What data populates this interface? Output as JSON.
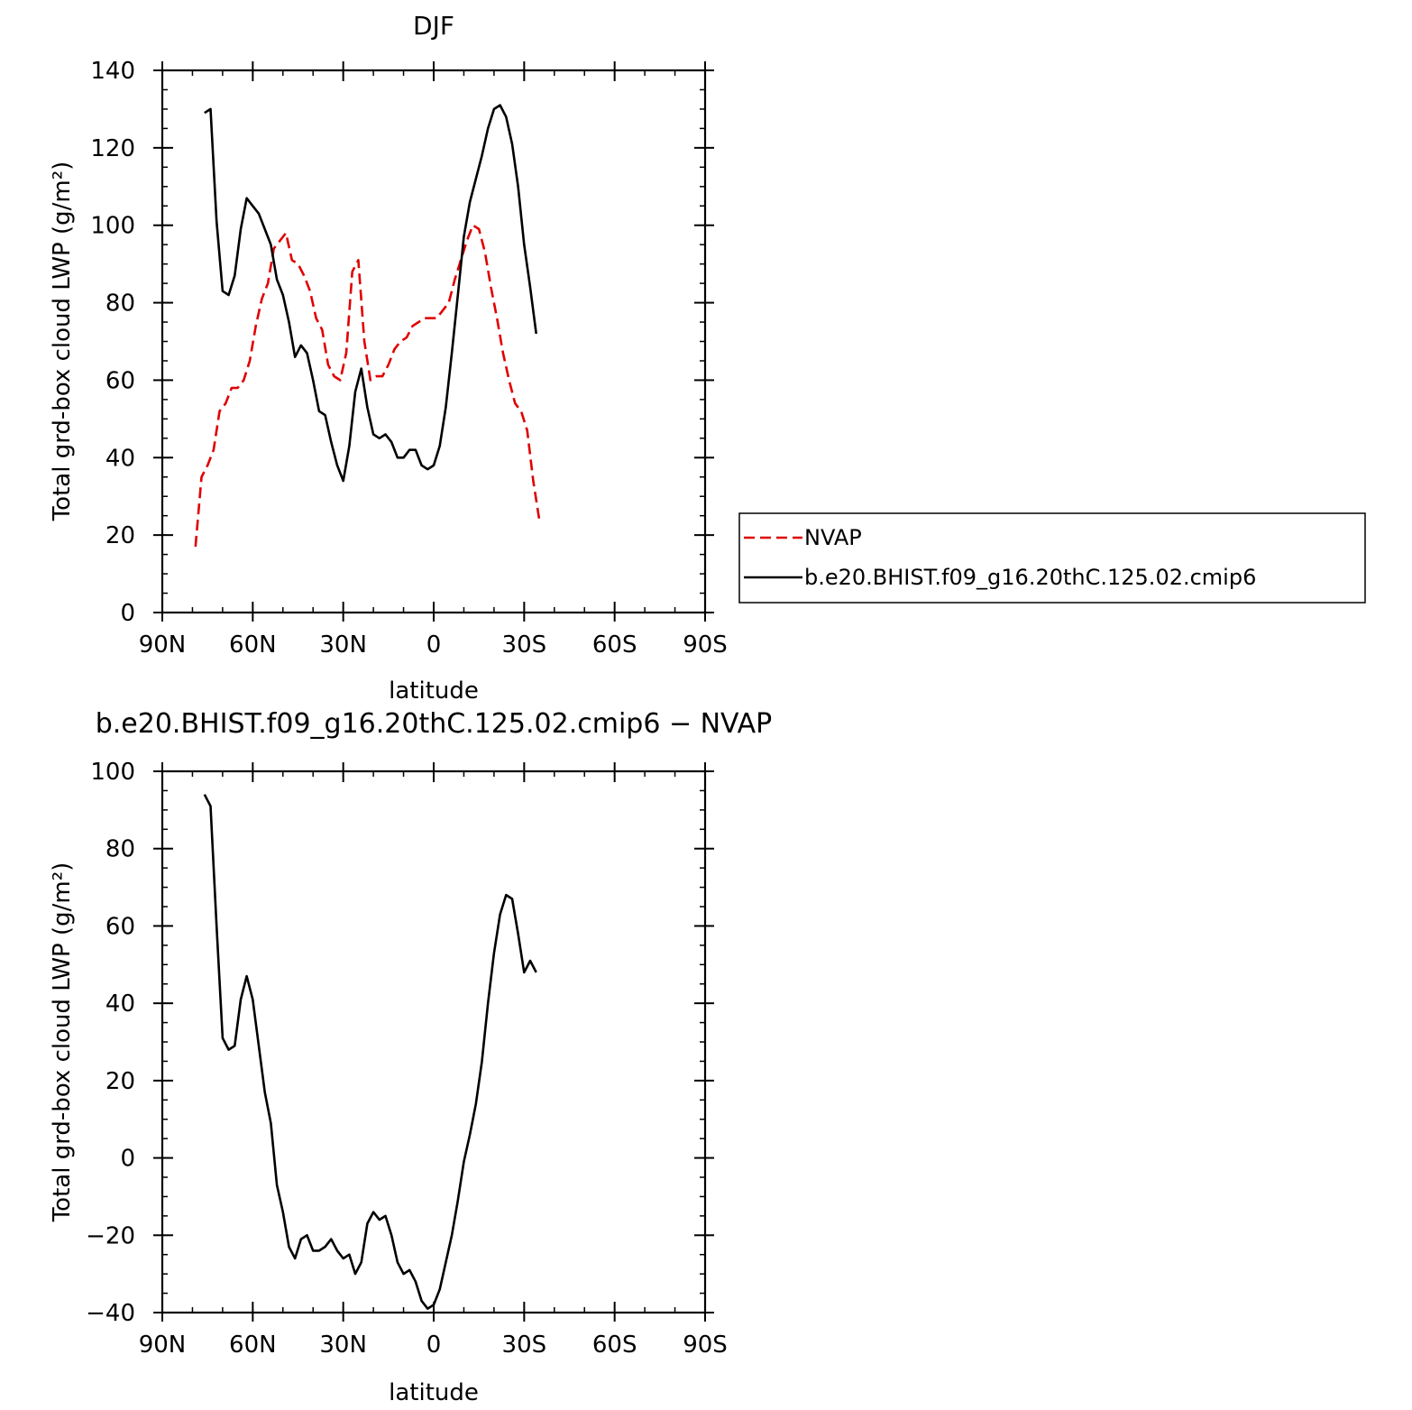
{
  "chart_data": [
    {
      "type": "line",
      "title": "DJF",
      "xlabel": "latitude",
      "ylabel": "Total grd-box cloud LWP (g/m²)",
      "xlim": [
        90,
        -90
      ],
      "ylim": [
        0,
        140
      ],
      "xticks": [
        {
          "value": 90,
          "label": "90N"
        },
        {
          "value": 60,
          "label": "60N"
        },
        {
          "value": 30,
          "label": "30N"
        },
        {
          "value": 0,
          "label": "0"
        },
        {
          "value": -30,
          "label": "30S"
        },
        {
          "value": -60,
          "label": "60S"
        },
        {
          "value": -90,
          "label": "90S"
        }
      ],
      "yticks": [
        {
          "value": 0,
          "label": "0"
        },
        {
          "value": 20,
          "label": "20"
        },
        {
          "value": 40,
          "label": "40"
        },
        {
          "value": 60,
          "label": "60"
        },
        {
          "value": 80,
          "label": "80"
        },
        {
          "value": 100,
          "label": "100"
        },
        {
          "value": 120,
          "label": "120"
        },
        {
          "value": 140,
          "label": "140"
        }
      ],
      "legend": {
        "position": "right"
      },
      "series": [
        {
          "name": "NVAP",
          "color": "#e00000",
          "dash": "dashed",
          "points": [
            [
              79,
              17
            ],
            [
              77,
              35
            ],
            [
              75,
              38
            ],
            [
              73,
              42
            ],
            [
              71,
              52
            ],
            [
              69,
              54
            ],
            [
              67,
              58
            ],
            [
              65,
              58
            ],
            [
              63,
              60
            ],
            [
              61,
              65
            ],
            [
              59,
              74
            ],
            [
              57,
              81
            ],
            [
              55,
              85
            ],
            [
              53,
              94
            ],
            [
              51,
              96
            ],
            [
              49,
              98
            ],
            [
              47,
              91
            ],
            [
              45,
              90
            ],
            [
              43,
              87
            ],
            [
              41,
              83
            ],
            [
              39,
              76
            ],
            [
              37,
              73
            ],
            [
              35,
              64
            ],
            [
              33,
              61
            ],
            [
              31,
              60
            ],
            [
              29,
              67
            ],
            [
              27,
              88
            ],
            [
              25,
              91
            ],
            [
              23,
              70
            ],
            [
              21,
              60
            ],
            [
              19,
              61
            ],
            [
              17,
              61
            ],
            [
              15,
              64
            ],
            [
              13,
              68
            ],
            [
              11,
              70
            ],
            [
              9,
              71
            ],
            [
              7,
              74
            ],
            [
              5,
              75
            ],
            [
              3,
              76
            ],
            [
              1,
              76
            ],
            [
              -1,
              76
            ],
            [
              -3,
              78
            ],
            [
              -5,
              80
            ],
            [
              -7,
              86
            ],
            [
              -9,
              91
            ],
            [
              -11,
              96
            ],
            [
              -13,
              100
            ],
            [
              -15,
              99
            ],
            [
              -17,
              93
            ],
            [
              -19,
              84
            ],
            [
              -21,
              76
            ],
            [
              -23,
              67
            ],
            [
              -25,
              60
            ],
            [
              -27,
              54
            ],
            [
              -29,
              52
            ],
            [
              -31,
              47
            ],
            [
              -33,
              34
            ],
            [
              -35,
              24
            ]
          ]
        },
        {
          "name": "b.e20.BHIST.f09_g16.20thC.125.02.cmip6",
          "color": "#000000",
          "dash": "solid",
          "points": [
            [
              76,
              129
            ],
            [
              74,
              130
            ],
            [
              72,
              101
            ],
            [
              70,
              83
            ],
            [
              68,
              82
            ],
            [
              66,
              87
            ],
            [
              64,
              99
            ],
            [
              62,
              107
            ],
            [
              60,
              105
            ],
            [
              58,
              103
            ],
            [
              56,
              99
            ],
            [
              54,
              95
            ],
            [
              52,
              86
            ],
            [
              50,
              82
            ],
            [
              48,
              75
            ],
            [
              46,
              66
            ],
            [
              44,
              69
            ],
            [
              42,
              67
            ],
            [
              40,
              60
            ],
            [
              38,
              52
            ],
            [
              36,
              51
            ],
            [
              34,
              44
            ],
            [
              32,
              38
            ],
            [
              30,
              34
            ],
            [
              28,
              43
            ],
            [
              26,
              57
            ],
            [
              24,
              63
            ],
            [
              22,
              53
            ],
            [
              20,
              46
            ],
            [
              18,
              45
            ],
            [
              16,
              46
            ],
            [
              14,
              44
            ],
            [
              12,
              40
            ],
            [
              10,
              40
            ],
            [
              8,
              42
            ],
            [
              6,
              42
            ],
            [
              4,
              38
            ],
            [
              2,
              37
            ],
            [
              0,
              38
            ],
            [
              -2,
              43
            ],
            [
              -4,
              53
            ],
            [
              -6,
              67
            ],
            [
              -8,
              82
            ],
            [
              -10,
              97
            ],
            [
              -12,
              106
            ],
            [
              -14,
              112
            ],
            [
              -16,
              118
            ],
            [
              -18,
              125
            ],
            [
              -20,
              130
            ],
            [
              -22,
              131
            ],
            [
              -24,
              128
            ],
            [
              -26,
              121
            ],
            [
              -28,
              110
            ],
            [
              -30,
              95
            ],
            [
              -32,
              84
            ],
            [
              -34,
              72
            ]
          ]
        }
      ]
    },
    {
      "type": "line",
      "title": "b.e20.BHIST.f09_g16.20thC.125.02.cmip6 − NVAP",
      "xlabel": "latitude",
      "ylabel": "Total grd-box cloud LWP (g/m²)",
      "xlim": [
        90,
        -90
      ],
      "ylim": [
        -40,
        100
      ],
      "xticks": [
        {
          "value": 90,
          "label": "90N"
        },
        {
          "value": 60,
          "label": "60N"
        },
        {
          "value": 30,
          "label": "30N"
        },
        {
          "value": 0,
          "label": "0"
        },
        {
          "value": -30,
          "label": "30S"
        },
        {
          "value": -60,
          "label": "60S"
        },
        {
          "value": -90,
          "label": "90S"
        }
      ],
      "yticks": [
        {
          "value": -40,
          "label": "−40"
        },
        {
          "value": -20,
          "label": "−20"
        },
        {
          "value": 0,
          "label": "0"
        },
        {
          "value": 20,
          "label": "20"
        },
        {
          "value": 40,
          "label": "40"
        },
        {
          "value": 60,
          "label": "60"
        },
        {
          "value": 80,
          "label": "80"
        },
        {
          "value": 100,
          "label": "100"
        }
      ],
      "series": [
        {
          "color": "#000000",
          "dash": "solid",
          "points": [
            [
              76,
              94
            ],
            [
              74,
              91
            ],
            [
              72,
              60
            ],
            [
              70,
              31
            ],
            [
              68,
              28
            ],
            [
              66,
              29
            ],
            [
              64,
              41
            ],
            [
              62,
              47
            ],
            [
              60,
              41
            ],
            [
              58,
              29
            ],
            [
              56,
              17
            ],
            [
              54,
              9
            ],
            [
              52,
              -7
            ],
            [
              50,
              -14
            ],
            [
              48,
              -23
            ],
            [
              46,
              -26
            ],
            [
              44,
              -21
            ],
            [
              42,
              -20
            ],
            [
              40,
              -24
            ],
            [
              38,
              -24
            ],
            [
              36,
              -23
            ],
            [
              34,
              -21
            ],
            [
              32,
              -24
            ],
            [
              30,
              -26
            ],
            [
              28,
              -25
            ],
            [
              26,
              -30
            ],
            [
              24,
              -27
            ],
            [
              22,
              -17
            ],
            [
              20,
              -14
            ],
            [
              18,
              -16
            ],
            [
              16,
              -15
            ],
            [
              14,
              -20
            ],
            [
              12,
              -27
            ],
            [
              10,
              -30
            ],
            [
              8,
              -29
            ],
            [
              6,
              -32
            ],
            [
              4,
              -37
            ],
            [
              2,
              -39
            ],
            [
              0,
              -38
            ],
            [
              -2,
              -34
            ],
            [
              -4,
              -27
            ],
            [
              -6,
              -20
            ],
            [
              -8,
              -11
            ],
            [
              -10,
              -1
            ],
            [
              -12,
              6
            ],
            [
              -14,
              14
            ],
            [
              -16,
              25
            ],
            [
              -18,
              40
            ],
            [
              -20,
              53
            ],
            [
              -22,
              63
            ],
            [
              -24,
              68
            ],
            [
              -26,
              67
            ],
            [
              -28,
              58
            ],
            [
              -30,
              48
            ],
            [
              -32,
              51
            ],
            [
              -34,
              48
            ]
          ]
        }
      ]
    }
  ]
}
